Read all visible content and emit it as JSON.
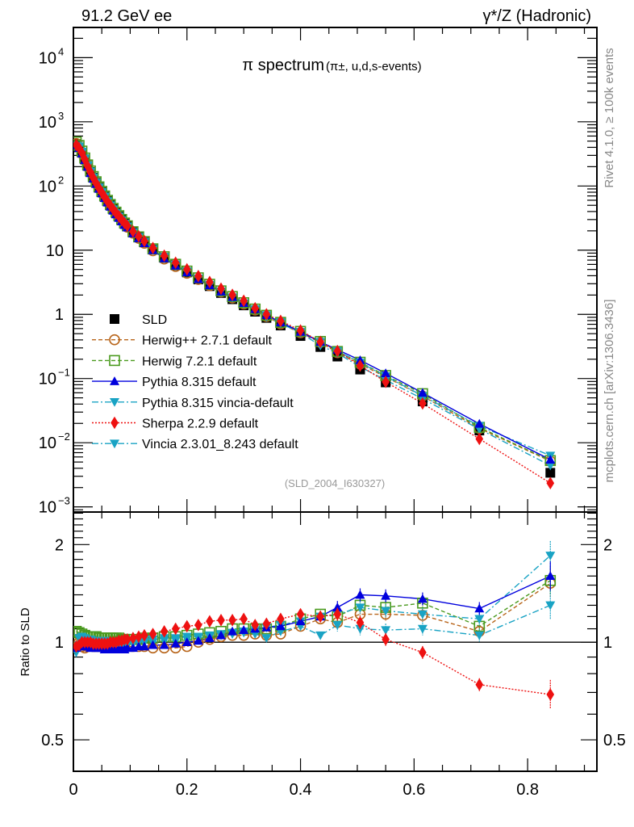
{
  "chart_data": {
    "type": "scatter",
    "header_left": "91.2 GeV ee",
    "header_right": "γ*/Z (Hadronic)",
    "title": "π spectrum",
    "title_sub": "(π±, u,d,s-events)",
    "analysis_id": "(SLD_2004_I630327)",
    "side_label_top": "Rivet 4.1.0, ≥ 100k events",
    "side_label_bottom": "mcplots.cern.ch [arXiv:1306.3436]",
    "ratio_ylabel": "Ratio to SLD",
    "xlim": [
      0,
      0.922
    ],
    "ylim_log10": [
      -3.08,
      4.47
    ],
    "ratio_ylim": [
      0.4,
      2.52
    ],
    "x_ticks": [
      "0",
      "0.2",
      "0.4",
      "0.6",
      "0.8"
    ],
    "x_tick_values": [
      0,
      0.2,
      0.4,
      0.6,
      0.8
    ],
    "y_ticks": [
      {
        "v": 4,
        "base": "10",
        "exp": "4"
      },
      {
        "v": 3,
        "base": "10",
        "exp": "3"
      },
      {
        "v": 2,
        "base": "10",
        "exp": "2"
      },
      {
        "v": 1,
        "base": "10",
        "exp": ""
      },
      {
        "v": 0,
        "base": "1",
        "exp": ""
      },
      {
        "v": -1,
        "base": "10",
        "exp": "−1"
      },
      {
        "v": -2,
        "base": "10",
        "exp": "−2"
      },
      {
        "v": -3,
        "base": "10",
        "exp": "−3"
      }
    ],
    "ratio_ticks": [
      {
        "v": 2,
        "label": "2"
      },
      {
        "v": 1,
        "label": "1"
      },
      {
        "v": 0.5,
        "label": "0.5"
      }
    ],
    "x": [
      0.005,
      0.01,
      0.015,
      0.02,
      0.025,
      0.03,
      0.035,
      0.04,
      0.045,
      0.05,
      0.055,
      0.06,
      0.065,
      0.07,
      0.075,
      0.08,
      0.085,
      0.09,
      0.095,
      0.105,
      0.115,
      0.125,
      0.14,
      0.16,
      0.18,
      0.2,
      0.22,
      0.24,
      0.26,
      0.28,
      0.3,
      0.32,
      0.34,
      0.365,
      0.4,
      0.435,
      0.465,
      0.505,
      0.55,
      0.615,
      0.715,
      0.84
    ],
    "data": {
      "name": "SLD",
      "values": [
        450,
        400,
        330,
        260,
        205,
        165,
        135,
        112,
        94,
        80,
        68,
        58,
        50,
        43.5,
        38,
        33.5,
        29.5,
        26,
        23.5,
        19,
        15.8,
        13.2,
        10.2,
        7.6,
        5.8,
        4.5,
        3.5,
        2.75,
        2.15,
        1.72,
        1.38,
        1.1,
        0.88,
        0.67,
        0.46,
        0.31,
        0.22,
        0.138,
        0.087,
        0.044,
        0.0155,
        0.0034
      ]
    },
    "series": [
      {
        "name": "Herwig++ 2.7.1 default",
        "color": "#b8651b",
        "marker": "open-circle",
        "dash": "5,3",
        "ratio": [
          1.02,
          1.0,
          0.97,
          0.96,
          0.97,
          0.98,
          0.97,
          0.97,
          0.97,
          0.97,
          0.97,
          0.97,
          0.97,
          0.97,
          0.97,
          0.97,
          0.97,
          0.97,
          0.97,
          0.97,
          0.97,
          0.97,
          0.96,
          0.96,
          0.96,
          0.97,
          1.0,
          1.02,
          1.04,
          1.05,
          1.05,
          1.06,
          1.05,
          1.06,
          1.12,
          1.18,
          1.15,
          1.22,
          1.22,
          1.21,
          1.08,
          1.52
        ]
      },
      {
        "name": "Herwig 7.2.1 default",
        "color": "#4a9a1e",
        "marker": "open-square",
        "dash": "5,3",
        "ratio": [
          1.08,
          1.07,
          1.06,
          1.05,
          1.04,
          1.04,
          1.04,
          1.04,
          1.03,
          1.03,
          1.03,
          1.03,
          1.03,
          1.03,
          1.03,
          1.03,
          1.02,
          1.02,
          1.02,
          1.02,
          1.02,
          1.03,
          1.03,
          1.04,
          1.04,
          1.05,
          1.06,
          1.07,
          1.08,
          1.1,
          1.1,
          1.1,
          1.1,
          1.12,
          1.18,
          1.22,
          1.2,
          1.3,
          1.28,
          1.32,
          1.12,
          1.55
        ]
      },
      {
        "name": "Pythia 8.315 default",
        "color": "#0000dd",
        "marker": "triangle-up",
        "dash": "",
        "ratio": [
          0.96,
          0.98,
          0.97,
          0.97,
          0.97,
          0.96,
          0.96,
          0.96,
          0.96,
          0.96,
          0.95,
          0.95,
          0.95,
          0.95,
          0.95,
          0.95,
          0.95,
          0.95,
          0.96,
          0.96,
          0.97,
          0.97,
          0.98,
          0.98,
          0.99,
          1.0,
          1.01,
          1.03,
          1.05,
          1.08,
          1.09,
          1.1,
          1.11,
          1.12,
          1.16,
          1.2,
          1.28,
          1.4,
          1.39,
          1.36,
          1.27,
          1.6
        ]
      },
      {
        "name": "Pythia 8.315 vincia-default",
        "color": "#19a3c4",
        "marker": "triangle-down",
        "dash": "8,3,2,3",
        "ratio": [
          0.93,
          0.98,
          1.0,
          1.0,
          0.99,
          0.99,
          0.99,
          0.99,
          0.99,
          0.98,
          0.98,
          0.98,
          0.98,
          0.98,
          0.98,
          0.98,
          0.98,
          0.98,
          0.99,
          0.99,
          1.0,
          1.0,
          1.0,
          1.01,
          1.01,
          1.02,
          1.03,
          1.04,
          1.05,
          1.06,
          1.07,
          1.06,
          1.03,
          1.08,
          1.12,
          1.05,
          1.13,
          1.1,
          1.09,
          1.1,
          1.05,
          1.3
        ]
      },
      {
        "name": "Sherpa 2.2.9 default",
        "color": "#ee1111",
        "marker": "diamond",
        "dash": "2,2",
        "ratio": [
          0.97,
          0.98,
          1.0,
          1.0,
          1.0,
          1.0,
          0.99,
          0.99,
          0.99,
          0.99,
          0.99,
          0.99,
          1.0,
          1.0,
          1.0,
          1.01,
          1.01,
          1.02,
          1.02,
          1.03,
          1.04,
          1.05,
          1.06,
          1.08,
          1.1,
          1.12,
          1.13,
          1.16,
          1.17,
          1.17,
          1.18,
          1.13,
          1.14,
          1.18,
          1.22,
          1.2,
          1.22,
          1.15,
          1.02,
          0.93,
          0.74,
          0.69
        ]
      },
      {
        "name": "Vincia 2.3.01_8.243 default",
        "color": "#19a3c4",
        "marker": "triangle-down",
        "dash": "8,3,2,3",
        "ratio": [
          0.95,
          1.03,
          1.04,
          1.03,
          1.02,
          1.02,
          1.01,
          1.01,
          1.01,
          1.01,
          1.01,
          1.0,
          1.0,
          1.0,
          1.0,
          1.0,
          1.0,
          1.0,
          1.0,
          1.01,
          1.02,
          1.02,
          1.02,
          1.03,
          1.03,
          1.04,
          1.04,
          1.05,
          1.06,
          1.07,
          1.08,
          1.09,
          1.11,
          1.13,
          1.16,
          1.2,
          1.22,
          1.28,
          1.25,
          1.22,
          1.18,
          1.85
        ]
      }
    ],
    "legend": [
      {
        "label": "SLD"
      },
      {
        "label": "Herwig++ 2.7.1 default"
      },
      {
        "label": "Herwig 7.2.1 default"
      },
      {
        "label": "Pythia 8.315 default"
      },
      {
        "label": "Pythia 8.315 vincia-default"
      },
      {
        "label": "Sherpa 2.2.9 default"
      },
      {
        "label": "Vincia 2.3.01_8.243 default"
      }
    ],
    "legend_position": "lower-left of upper panel"
  }
}
